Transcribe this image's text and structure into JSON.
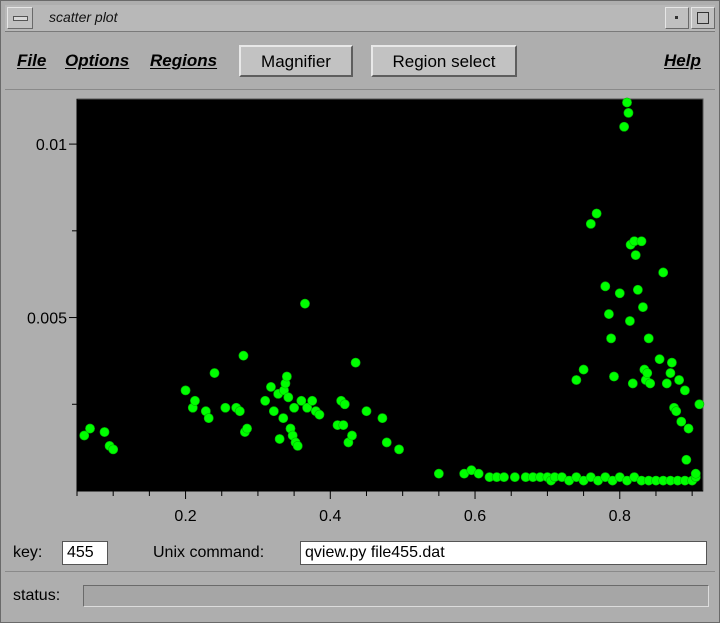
{
  "window": {
    "title": "scatter plot"
  },
  "menus": [
    {
      "label": "File"
    },
    {
      "label": "Options"
    },
    {
      "label": "Regions"
    }
  ],
  "help_menu": {
    "label": "Help"
  },
  "toolbar": {
    "magnifier_label": "Magnifier",
    "region_select_label": "Region select"
  },
  "key": {
    "label": "key:",
    "value": "455"
  },
  "unix_command": {
    "label": "Unix command:",
    "value": "qview.py file455.dat"
  },
  "status": {
    "label": "status:",
    "value": ""
  },
  "colors": {
    "plot_background": "#000000",
    "point_color": "#00ff00",
    "window_bg": "#aeaeae"
  },
  "chart_data": {
    "type": "scatter",
    "title": "",
    "xlabel": "",
    "ylabel": "",
    "xlim": [
      0.05,
      0.915
    ],
    "ylim": [
      0.0,
      0.0113
    ],
    "xticks": [
      0.2,
      0.4,
      0.6,
      0.8
    ],
    "xtick_labels": [
      "0.2",
      "0.4",
      "0.6",
      "0.8"
    ],
    "yticks": [
      0.005,
      0.01
    ],
    "ytick_labels": [
      "0.005",
      "0.01"
    ],
    "grid": false,
    "series": [
      {
        "points": [
          [
            0.06,
            0.0016
          ],
          [
            0.068,
            0.0018
          ],
          [
            0.088,
            0.0017
          ],
          [
            0.095,
            0.0013
          ],
          [
            0.1,
            0.0012
          ],
          [
            0.2,
            0.0029
          ],
          [
            0.21,
            0.0024
          ],
          [
            0.213,
            0.0026
          ],
          [
            0.228,
            0.0023
          ],
          [
            0.232,
            0.0021
          ],
          [
            0.24,
            0.0034
          ],
          [
            0.255,
            0.0024
          ],
          [
            0.27,
            0.0024
          ],
          [
            0.275,
            0.0023
          ],
          [
            0.28,
            0.0039
          ],
          [
            0.282,
            0.0017
          ],
          [
            0.285,
            0.0018
          ],
          [
            0.31,
            0.0026
          ],
          [
            0.318,
            0.003
          ],
          [
            0.322,
            0.0023
          ],
          [
            0.328,
            0.0028
          ],
          [
            0.33,
            0.0015
          ],
          [
            0.335,
            0.0021
          ],
          [
            0.336,
            0.0029
          ],
          [
            0.338,
            0.0031
          ],
          [
            0.34,
            0.0033
          ],
          [
            0.342,
            0.0027
          ],
          [
            0.345,
            0.0018
          ],
          [
            0.348,
            0.0016
          ],
          [
            0.35,
            0.0024
          ],
          [
            0.352,
            0.0014
          ],
          [
            0.355,
            0.0013
          ],
          [
            0.36,
            0.0026
          ],
          [
            0.365,
            0.0054
          ],
          [
            0.368,
            0.0024
          ],
          [
            0.375,
            0.0026
          ],
          [
            0.38,
            0.0023
          ],
          [
            0.385,
            0.0022
          ],
          [
            0.41,
            0.0019
          ],
          [
            0.415,
            0.0026
          ],
          [
            0.42,
            0.0025
          ],
          [
            0.418,
            0.0019
          ],
          [
            0.425,
            0.0014
          ],
          [
            0.43,
            0.0016
          ],
          [
            0.435,
            0.0037
          ],
          [
            0.45,
            0.0023
          ],
          [
            0.472,
            0.0021
          ],
          [
            0.478,
            0.0014
          ],
          [
            0.495,
            0.0012
          ],
          [
            0.55,
            0.0005
          ],
          [
            0.585,
            0.0005
          ],
          [
            0.595,
            0.0006
          ],
          [
            0.605,
            0.0005
          ],
          [
            0.62,
            0.0004
          ],
          [
            0.63,
            0.0004
          ],
          [
            0.64,
            0.0004
          ],
          [
            0.655,
            0.0004
          ],
          [
            0.67,
            0.0004
          ],
          [
            0.68,
            0.0004
          ],
          [
            0.69,
            0.0004
          ],
          [
            0.7,
            0.0004
          ],
          [
            0.705,
            0.0003
          ],
          [
            0.71,
            0.0004
          ],
          [
            0.72,
            0.0004
          ],
          [
            0.73,
            0.0003
          ],
          [
            0.74,
            0.0004
          ],
          [
            0.75,
            0.0003
          ],
          [
            0.76,
            0.0004
          ],
          [
            0.77,
            0.0003
          ],
          [
            0.78,
            0.0004
          ],
          [
            0.79,
            0.0003
          ],
          [
            0.8,
            0.0004
          ],
          [
            0.81,
            0.0003
          ],
          [
            0.82,
            0.0004
          ],
          [
            0.83,
            0.0003
          ],
          [
            0.84,
            0.0003
          ],
          [
            0.85,
            0.0003
          ],
          [
            0.86,
            0.0003
          ],
          [
            0.87,
            0.0003
          ],
          [
            0.88,
            0.0003
          ],
          [
            0.89,
            0.0003
          ],
          [
            0.9,
            0.0003
          ],
          [
            0.905,
            0.0004
          ],
          [
            0.74,
            0.0032
          ],
          [
            0.75,
            0.0035
          ],
          [
            0.76,
            0.0077
          ],
          [
            0.768,
            0.008
          ],
          [
            0.78,
            0.0059
          ],
          [
            0.785,
            0.0051
          ],
          [
            0.788,
            0.0044
          ],
          [
            0.792,
            0.0033
          ],
          [
            0.8,
            0.0057
          ],
          [
            0.806,
            0.0105
          ],
          [
            0.81,
            0.0112
          ],
          [
            0.812,
            0.0109
          ],
          [
            0.814,
            0.0049
          ],
          [
            0.815,
            0.0071
          ],
          [
            0.818,
            0.0031
          ],
          [
            0.82,
            0.0072
          ],
          [
            0.822,
            0.0068
          ],
          [
            0.825,
            0.0058
          ],
          [
            0.83,
            0.0072
          ],
          [
            0.832,
            0.0053
          ],
          [
            0.834,
            0.0035
          ],
          [
            0.836,
            0.0032
          ],
          [
            0.838,
            0.0034
          ],
          [
            0.84,
            0.0044
          ],
          [
            0.842,
            0.0031
          ],
          [
            0.855,
            0.0038
          ],
          [
            0.86,
            0.0063
          ],
          [
            0.865,
            0.0031
          ],
          [
            0.87,
            0.0034
          ],
          [
            0.872,
            0.0037
          ],
          [
            0.875,
            0.0024
          ],
          [
            0.878,
            0.0023
          ],
          [
            0.882,
            0.0032
          ],
          [
            0.885,
            0.002
          ],
          [
            0.89,
            0.0029
          ],
          [
            0.892,
            0.0009
          ],
          [
            0.895,
            0.0018
          ],
          [
            0.91,
            0.0025
          ],
          [
            0.905,
            0.0005
          ]
        ]
      }
    ]
  }
}
